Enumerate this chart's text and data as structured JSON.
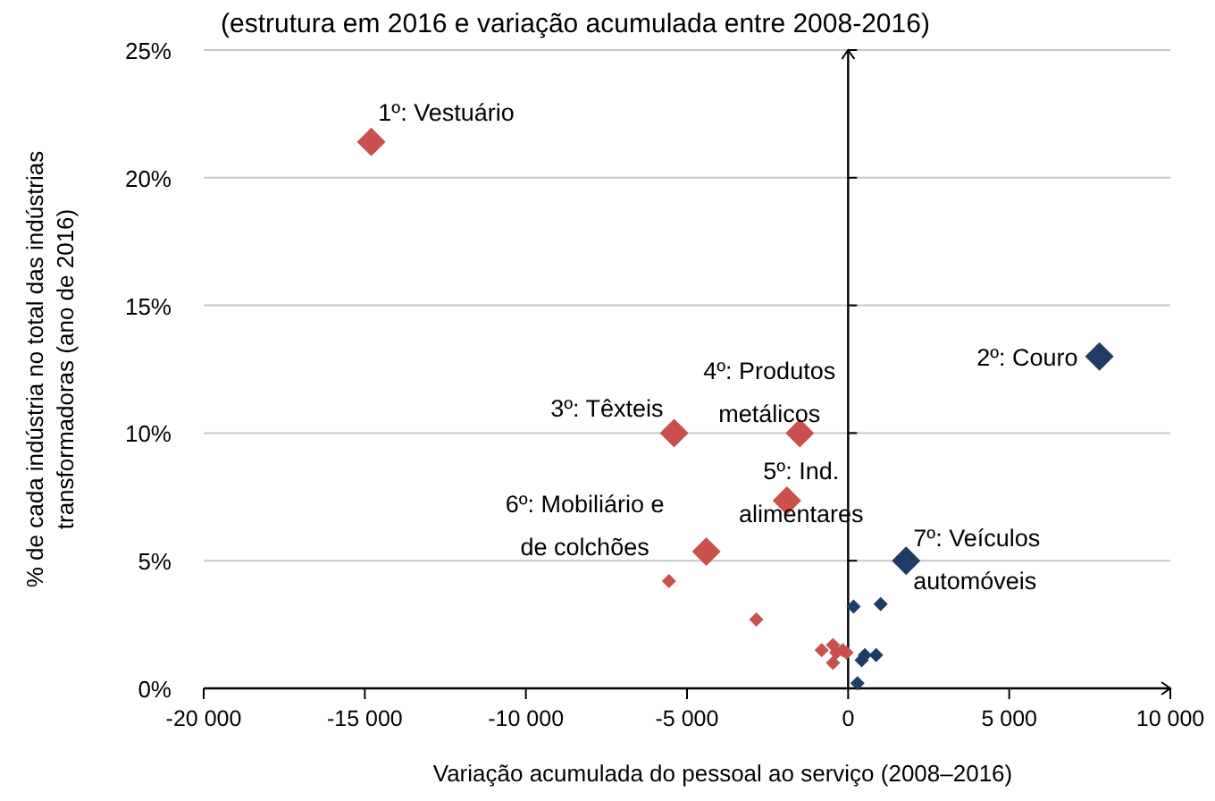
{
  "chart_data": {
    "type": "bubble",
    "subtitle": "(estrutura em 2016 e variação acumulada entre 2008-2016)",
    "xlabel": "Variação acumulada do pessoal ao serviço (2008–2016)",
    "ylabel": "% de cada indústria no total das indústrias\ntransformadoras (ano de 2016)",
    "series": [
      {
        "color": "#c9504b",
        "x": [
          -14800,
          -5400,
          -1500,
          -1900,
          -4400,
          -5560,
          -2850,
          -820,
          -470,
          -470,
          -370,
          -170,
          -50
        ],
        "values": [
          21.4,
          10.0,
          10.0,
          7.35,
          5.36,
          4.2,
          2.7,
          1.5,
          1.7,
          1.0,
          1.4,
          1.5,
          1.4
        ],
        "sizes": [
          1,
          1,
          1,
          1,
          1,
          0.25,
          0.25,
          0.25,
          0.25,
          0.25,
          0.25,
          0.25,
          0.25
        ]
      },
      {
        "color": "#1f3c64",
        "x": [
          7800,
          1800,
          170,
          1010,
          420,
          520,
          870,
          290
        ],
        "values": [
          13.0,
          5.0,
          3.2,
          3.3,
          1.1,
          1.3,
          1.3,
          0.2
        ],
        "sizes": [
          1,
          1,
          0.25,
          0.25,
          0.25,
          0.25,
          0.25,
          0.25
        ]
      }
    ],
    "marker": "diamond",
    "grid": "y",
    "xlim": [
      -20000,
      10000
    ],
    "xticks": [
      {
        "value": -20000,
        "label": "-20 000"
      },
      {
        "value": -15000,
        "label": "-15 000"
      },
      {
        "value": -10000,
        "label": "-10 000"
      },
      {
        "value": -5000,
        "label": "-5 000"
      },
      0,
      {
        "value": 5000,
        "label": "5 000"
      },
      {
        "value": 10000,
        "label": "10 000"
      }
    ],
    "ylim": [
      0,
      25
    ],
    "yticks": [
      {
        "value": 0,
        "label": "0%"
      },
      {
        "value": 5,
        "label": "5%"
      },
      {
        "value": 10,
        "label": "10%"
      },
      {
        "value": 15,
        "label": "15%"
      },
      {
        "value": 20,
        "label": "20%"
      },
      {
        "value": 25,
        "label": "25%"
      }
    ],
    "annotations": [
      {
        "text": "1º: Vestuário",
        "x": -14800,
        "y": 21.4
      },
      {
        "text": "2º: Couro",
        "x": 7800,
        "y": 13.0
      },
      {
        "text": "3º: Têxteis",
        "x": -5400,
        "y": 10.0
      },
      {
        "text": "4º: Produtos\nmetálicos",
        "x": -1500,
        "y": 10.0
      },
      {
        "text": "5º: Ind.\nalimentares",
        "x": -1900,
        "y": 7.35
      },
      {
        "text": "6º: Mobiliário e\nde colchões",
        "x": -4400,
        "y": 5.36
      },
      {
        "text": "7º: Veículos\nautomóveis",
        "x": 1800,
        "y": 5.0
      }
    ]
  }
}
